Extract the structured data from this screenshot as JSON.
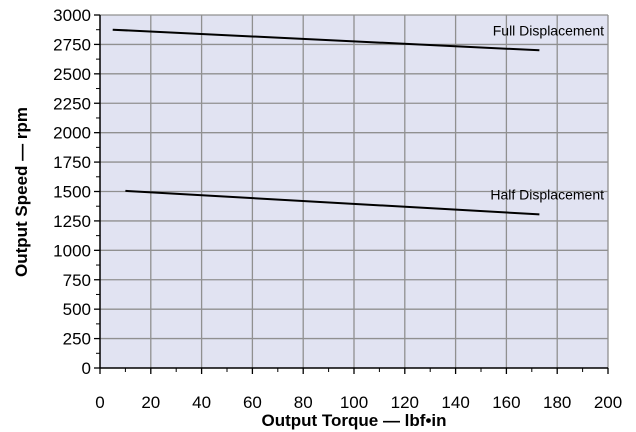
{
  "chart_data": {
    "type": "line",
    "title": "",
    "xlabel": "Output Torque — lbf•in",
    "ylabel": "Output Speed — rpm",
    "xlim": [
      0,
      200
    ],
    "ylim": [
      0,
      3000
    ],
    "x_ticks": [
      0,
      20,
      40,
      60,
      80,
      100,
      120,
      140,
      160,
      180,
      200
    ],
    "y_ticks": [
      0,
      250,
      500,
      750,
      1000,
      1250,
      1500,
      1750,
      2000,
      2250,
      2500,
      2750,
      3000
    ],
    "x_minor_step": 10,
    "y_minor_step": 125,
    "grid": true,
    "legend": "none",
    "colors": {
      "plot_background": "#e1e3f2",
      "grid": "#909090",
      "line": "#000000",
      "axis": "#000000"
    },
    "series": [
      {
        "name": "Full Displacement",
        "x": [
          5,
          173
        ],
        "y": [
          2875,
          2700
        ]
      },
      {
        "name": "Half Displacement",
        "x": [
          10,
          173
        ],
        "y": [
          1505,
          1305
        ]
      }
    ]
  }
}
